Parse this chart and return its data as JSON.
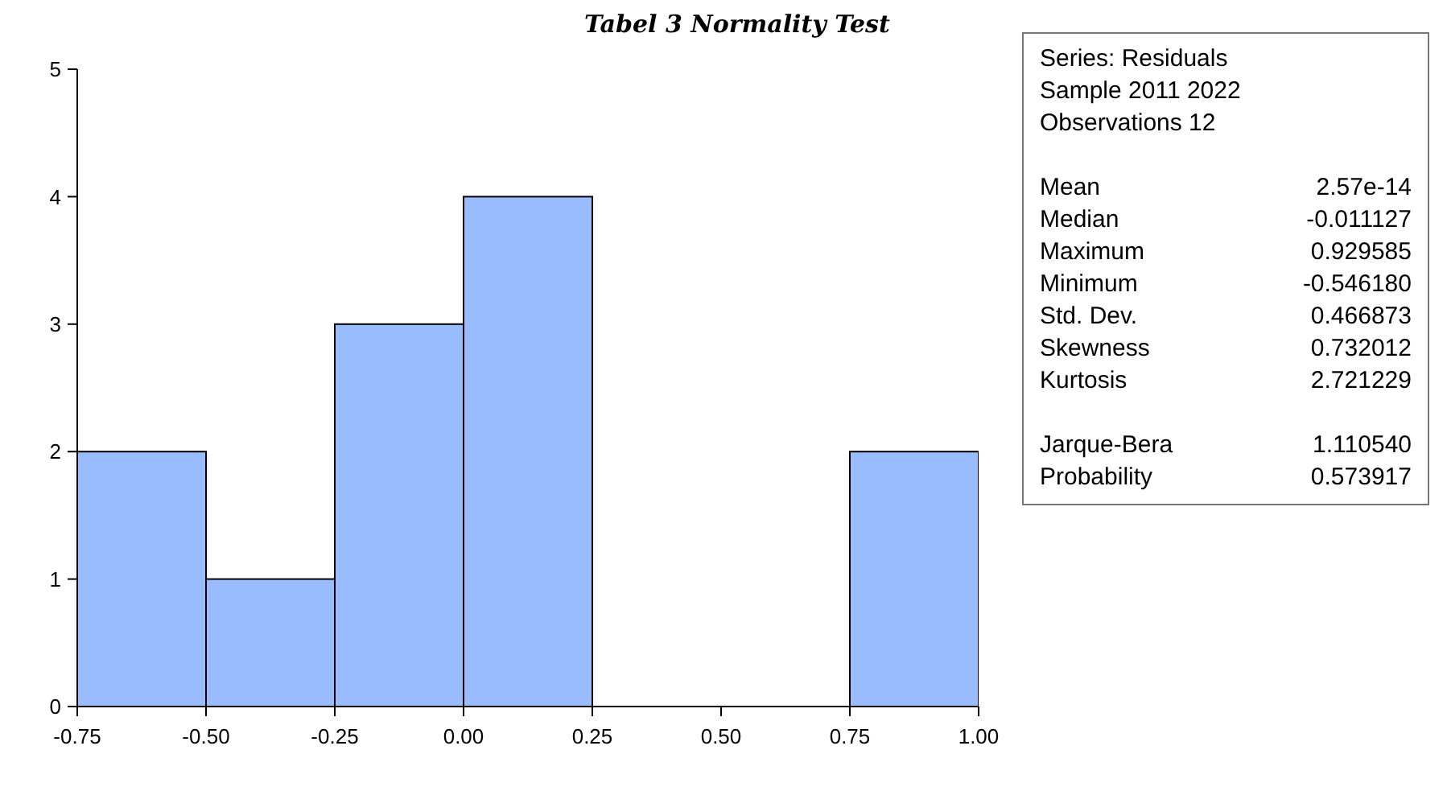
{
  "chart_data": {
    "type": "histogram",
    "title": "Tabel 3 Normality Test",
    "bins": [
      -0.75,
      -0.5,
      -0.25,
      0,
      0.25,
      0.5,
      0.75,
      1.0
    ],
    "values": [
      2,
      1,
      3,
      4,
      0,
      0,
      2
    ],
    "color": "#99bbff",
    "xlim": [
      -0.75,
      1.0
    ],
    "xticks": [
      {
        "value": -0.75,
        "label": "-0.75"
      },
      {
        "value": -0.5,
        "label": "-0.50"
      },
      {
        "value": -0.25,
        "label": "-0.25"
      },
      {
        "value": 0,
        "label": "0.00"
      },
      {
        "value": 0.25,
        "label": "0.25"
      },
      {
        "value": 0.5,
        "label": "0.50"
      },
      {
        "value": 0.75,
        "label": "0.75"
      },
      {
        "value": 1.0,
        "label": "1.00"
      }
    ],
    "ylim": [
      0,
      5
    ],
    "yticks": [
      0,
      1,
      2,
      3,
      4,
      5
    ],
    "grid": false,
    "legend": false,
    "annotations": [
      "Series: Residuals",
      "Sample 2011 2022",
      "Observations 12",
      "Mean 2.57e-14",
      "Median -0.011127",
      "Maximum 0.929585",
      "Minimum -0.546180",
      "Std. Dev. 0.466873",
      "Skewness 0.732012",
      "Kurtosis 2.721229",
      "Jarque-Bera 1.110540",
      "Probability 0.573917"
    ]
  }
}
